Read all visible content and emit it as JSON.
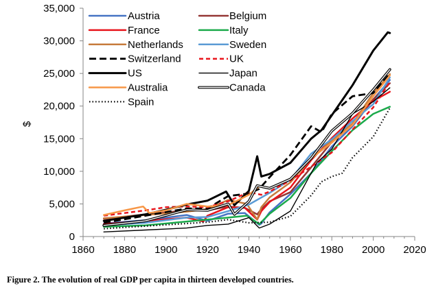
{
  "caption": "Figure 2. The evolution of real GDP per capita in thirteen developed countries.",
  "chart_data": {
    "type": "line",
    "title": "",
    "xlabel": "",
    "ylabel": "$",
    "xlim": [
      1860,
      2020
    ],
    "ylim": [
      0,
      35000
    ],
    "x_ticks": [
      1860,
      1880,
      1900,
      1920,
      1940,
      1960,
      1980,
      2000,
      2020
    ],
    "y_ticks": [
      0,
      5000,
      10000,
      15000,
      20000,
      25000,
      30000,
      35000
    ],
    "x_tick_labels": [
      "1860",
      "1880",
      "1900",
      "1920",
      "1940",
      "1960",
      "1980",
      "2000",
      "2020"
    ],
    "y_tick_labels": [
      "0",
      "5,000",
      "10,000",
      "15,000",
      "20,000",
      "25,000",
      "30,000",
      "35,000"
    ],
    "grid": false,
    "legend_position": "top-left",
    "series": [
      {
        "name": "Austria",
        "color": "#4472C4",
        "dash": "solid",
        "width": 2.5,
        "x": [
          1870,
          1890,
          1910,
          1920,
          1930,
          1938,
          1945,
          1946,
          1950,
          1960,
          1970,
          1980,
          1990,
          2000,
          2008
        ],
        "y": [
          2000,
          2500,
          3300,
          2400,
          3500,
          3600,
          1800,
          2000,
          3700,
          6500,
          9700,
          13800,
          16900,
          21000,
          24000
        ]
      },
      {
        "name": "Belgium",
        "color": "#943634",
        "dash": "solid",
        "width": 2.5,
        "x": [
          1870,
          1890,
          1910,
          1920,
          1930,
          1938,
          1944,
          1946,
          1950,
          1960,
          1970,
          1980,
          1990,
          2000,
          2008
        ],
        "y": [
          2700,
          3400,
          4000,
          4000,
          4600,
          4400,
          3400,
          4200,
          5400,
          6800,
          10600,
          14500,
          17200,
          21000,
          23500
        ]
      },
      {
        "name": "France",
        "color": "#E8141B",
        "dash": "solid",
        "width": 2.5,
        "x": [
          1870,
          1890,
          1910,
          1918,
          1920,
          1930,
          1938,
          1944,
          1946,
          1950,
          1960,
          1970,
          1980,
          1990,
          2000,
          2008
        ],
        "y": [
          1900,
          2400,
          2900,
          2300,
          3200,
          4500,
          4400,
          2600,
          3900,
          5300,
          7500,
          11700,
          15100,
          18100,
          20800,
          22200
        ]
      },
      {
        "name": "Italy",
        "color": "#1BAA4B",
        "dash": "solid",
        "width": 2.5,
        "x": [
          1870,
          1890,
          1910,
          1920,
          1930,
          1939,
          1945,
          1950,
          1960,
          1970,
          1980,
          1990,
          2000,
          2008
        ],
        "y": [
          1500,
          1700,
          2300,
          2600,
          2900,
          3200,
          1900,
          3500,
          5900,
          9700,
          13100,
          16300,
          18800,
          19900
        ]
      },
      {
        "name": "Netherlands",
        "color": "#C67B3C",
        "dash": "solid",
        "width": 2.5,
        "x": [
          1870,
          1890,
          1910,
          1920,
          1930,
          1939,
          1944,
          1946,
          1950,
          1960,
          1970,
          1980,
          1990,
          2000,
          2008
        ],
        "y": [
          2800,
          3300,
          3800,
          4200,
          5600,
          5000,
          2600,
          4500,
          6000,
          8300,
          11900,
          14700,
          17300,
          22000,
          24900
        ]
      },
      {
        "name": "Sweden",
        "color": "#5B9BD5",
        "dash": "solid",
        "width": 2.5,
        "x": [
          1870,
          1890,
          1910,
          1920,
          1930,
          1940,
          1950,
          1960,
          1970,
          1980,
          1990,
          2000,
          2008
        ],
        "y": [
          1700,
          2100,
          2900,
          3000,
          3900,
          4900,
          6700,
          8700,
          12700,
          14900,
          17700,
          20300,
          24400
        ]
      },
      {
        "name": "Switzerland",
        "color": "#000000",
        "dash": "10 5",
        "width": 2.8,
        "x": [
          1870,
          1890,
          1910,
          1920,
          1930,
          1940,
          1945,
          1950,
          1960,
          1970,
          1975,
          1980,
          1990,
          2000,
          2008
        ],
        "y": [
          2100,
          3200,
          4300,
          4300,
          6200,
          6600,
          7300,
          9100,
          12500,
          16900,
          16000,
          18800,
          21500,
          22000,
          25000
        ]
      },
      {
        "name": "UK",
        "color": "#E8141B",
        "dash": "6 4",
        "width": 2.5,
        "x": [
          1870,
          1890,
          1900,
          1910,
          1920,
          1930,
          1940,
          1946,
          1950,
          1960,
          1970,
          1980,
          1990,
          2000,
          2008
        ],
        "y": [
          3200,
          4000,
          4500,
          4600,
          4500,
          5400,
          6800,
          6400,
          6900,
          8600,
          10700,
          12900,
          16400,
          19800,
          23700
        ]
      },
      {
        "name": "US",
        "color": "#000000",
        "dash": "solid",
        "width": 3,
        "x": [
          1870,
          1890,
          1900,
          1910,
          1920,
          1929,
          1933,
          1940,
          1944,
          1946,
          1950,
          1960,
          1970,
          1975,
          1980,
          1990,
          2000,
          2007,
          2008
        ],
        "y": [
          2400,
          3400,
          4100,
          4900,
          5500,
          6900,
          4800,
          7000,
          12300,
          9200,
          9600,
          11300,
          15000,
          16300,
          18600,
          23200,
          28500,
          31300,
          31200
        ]
      },
      {
        "name": "Japan",
        "color": "#000000",
        "dash": "solid",
        "width": 1.4,
        "x": [
          1870,
          1890,
          1910,
          1920,
          1930,
          1940,
          1945,
          1950,
          1960,
          1970,
          1973,
          1980,
          1990,
          2000,
          2008
        ],
        "y": [
          700,
          1000,
          1300,
          1700,
          1900,
          2900,
          1300,
          1900,
          3900,
          9700,
          11400,
          13400,
          18800,
          20700,
          22800
        ]
      },
      {
        "name": "Australia",
        "color": "#F79646",
        "dash": "solid",
        "width": 2.5,
        "x": [
          1870,
          1880,
          1889,
          1892,
          1900,
          1910,
          1920,
          1930,
          1940,
          1945,
          1950,
          1960,
          1970,
          1980,
          1990,
          2000,
          2008
        ],
        "y": [
          3300,
          4000,
          4600,
          3600,
          4000,
          5000,
          4600,
          4800,
          6400,
          7700,
          7400,
          8800,
          12000,
          14400,
          17100,
          21500,
          24700
        ]
      },
      {
        "name": "Canada",
        "color": "#808080",
        "dash": "solid",
        "width": 3,
        "double": true,
        "x": [
          1870,
          1890,
          1910,
          1920,
          1930,
          1933,
          1940,
          1944,
          1950,
          1960,
          1970,
          1980,
          1990,
          2000,
          2008
        ],
        "y": [
          1700,
          2400,
          4100,
          4000,
          5000,
          3400,
          5400,
          7800,
          7400,
          8800,
          12000,
          16200,
          18900,
          22500,
          25600
        ]
      },
      {
        "name": "Spain",
        "color": "#000000",
        "dash": "1.5 3",
        "width": 2.2,
        "x": [
          1870,
          1890,
          1910,
          1920,
          1930,
          1940,
          1950,
          1960,
          1970,
          1975,
          1980,
          1985,
          1990,
          2000,
          2008
        ],
        "y": [
          1200,
          1600,
          2000,
          2200,
          2600,
          2100,
          2200,
          3100,
          6300,
          8400,
          9200,
          9700,
          12100,
          15300,
          19700
        ]
      }
    ]
  }
}
